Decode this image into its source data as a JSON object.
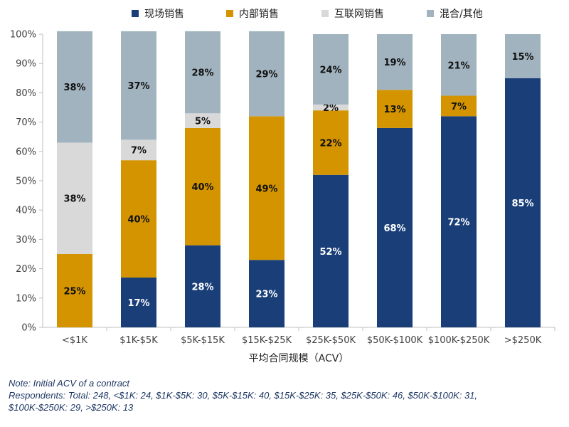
{
  "chart_data": {
    "type": "bar",
    "stacked": true,
    "orientation": "vertical",
    "categories": [
      "<$1K",
      "$1K-$5K",
      "$5K-$15K",
      "$15K-$25K",
      "$25K-$50K",
      "$50K-$100K",
      "$100K-$250K",
      ">$250K"
    ],
    "series": [
      {
        "name": "现场销售",
        "color": "#1a3f78",
        "label_color": "#ffffff",
        "values": [
          0,
          17,
          28,
          23,
          52,
          68,
          72,
          85
        ]
      },
      {
        "name": "内部销售",
        "color": "#d39400",
        "label_color": "#111111",
        "values": [
          25,
          40,
          40,
          49,
          22,
          13,
          7,
          0
        ]
      },
      {
        "name": "互联网销售",
        "color": "#d9d9d9",
        "label_color": "#111111",
        "values": [
          38,
          7,
          5,
          0,
          2,
          0,
          0,
          0
        ]
      },
      {
        "name": "混合/其他",
        "color": "#a1b3bf",
        "label_color": "#111111",
        "values": [
          38,
          37,
          28,
          29,
          24,
          19,
          21,
          15
        ]
      }
    ],
    "yticks": [
      "0%",
      "10%",
      "20%",
      "30%",
      "40%",
      "50%",
      "60%",
      "70%",
      "80%",
      "90%",
      "100%"
    ],
    "ylim": [
      0,
      100
    ],
    "xlabel": "平均合同规模（ACV）",
    "ylabel": "",
    "title": "",
    "legend_position": "top",
    "grid": false
  },
  "notes": {
    "line1": "Note: Initial ACV of a contract",
    "line2": "Respondents: Total: 248, <$1K: 24, $1K-$5K: 30, $5K-$15K: 40, $15K-$25K: 35, $25K-$50K: 46, $50K-$100K: 31,",
    "line3": "$100K-$250K: 29, >$250K: 13"
  }
}
